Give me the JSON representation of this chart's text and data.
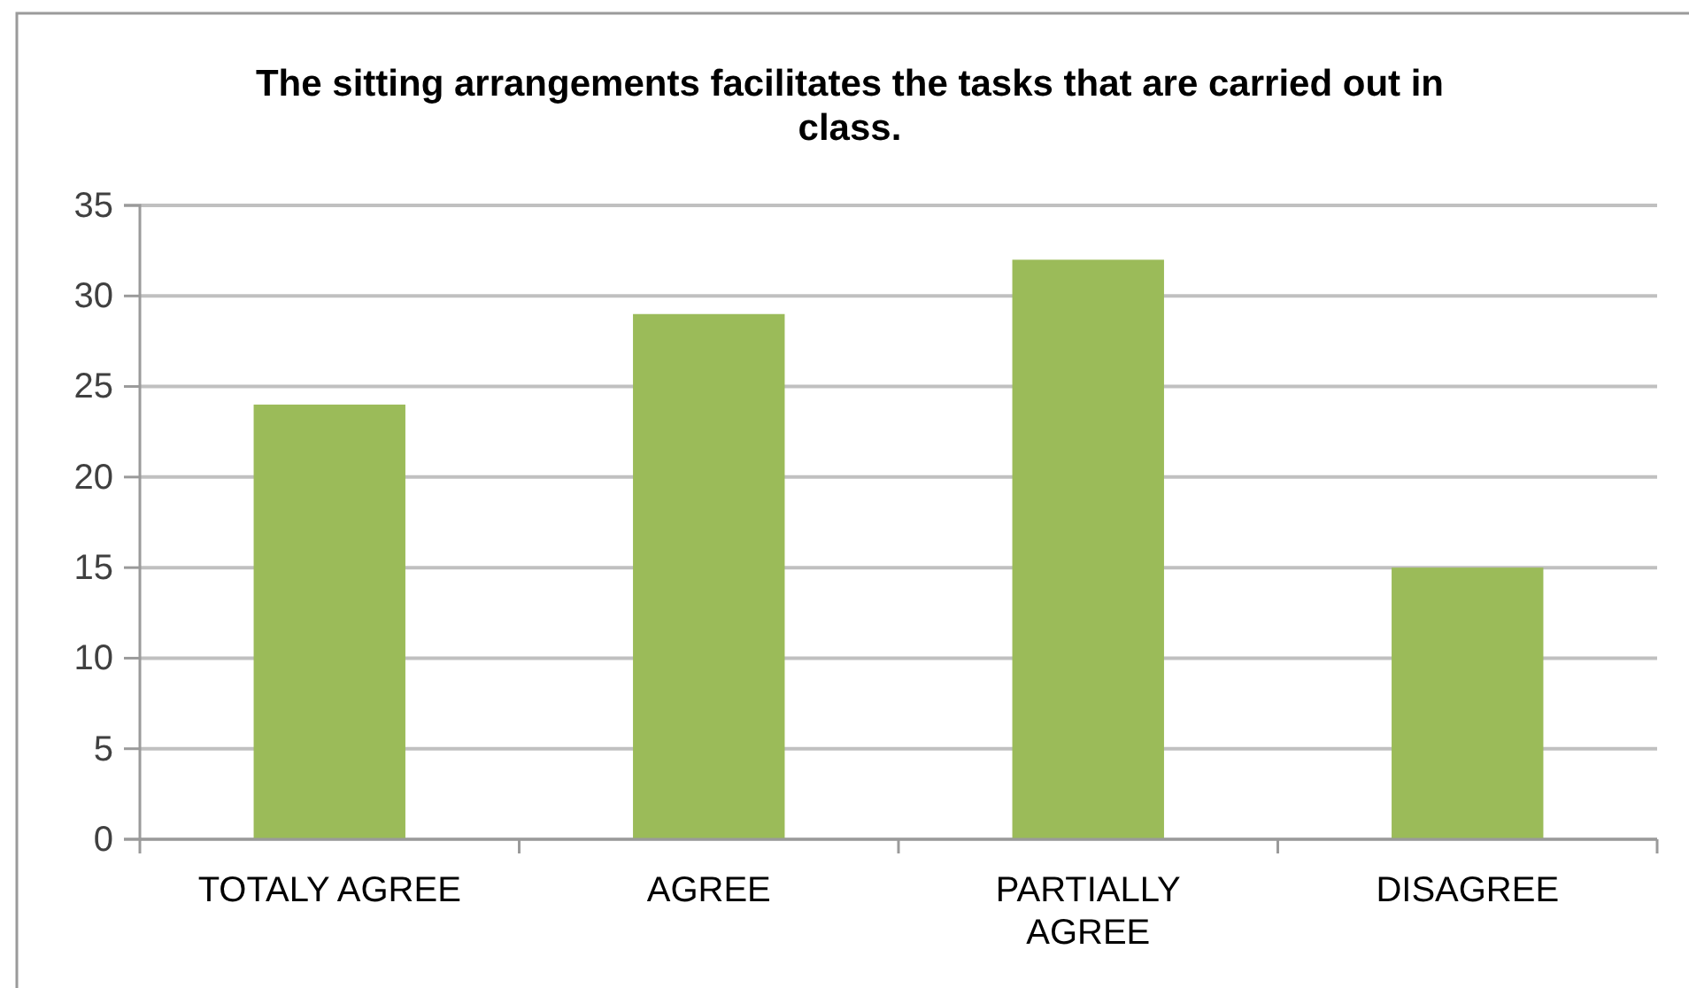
{
  "chart_data": {
    "type": "bar",
    "title": "The sitting arrangements facilitates the tasks that are carried out in class.",
    "categories": [
      "TOTALY AGREE",
      "AGREE",
      "PARTIALLY AGREE",
      "DISAGREE"
    ],
    "values": [
      24,
      29,
      32,
      15
    ],
    "color": "#9bbb59",
    "ylim": [
      0,
      35
    ],
    "yticks": [
      0,
      5,
      10,
      15,
      20,
      25,
      30,
      35
    ],
    "grid": "y"
  }
}
